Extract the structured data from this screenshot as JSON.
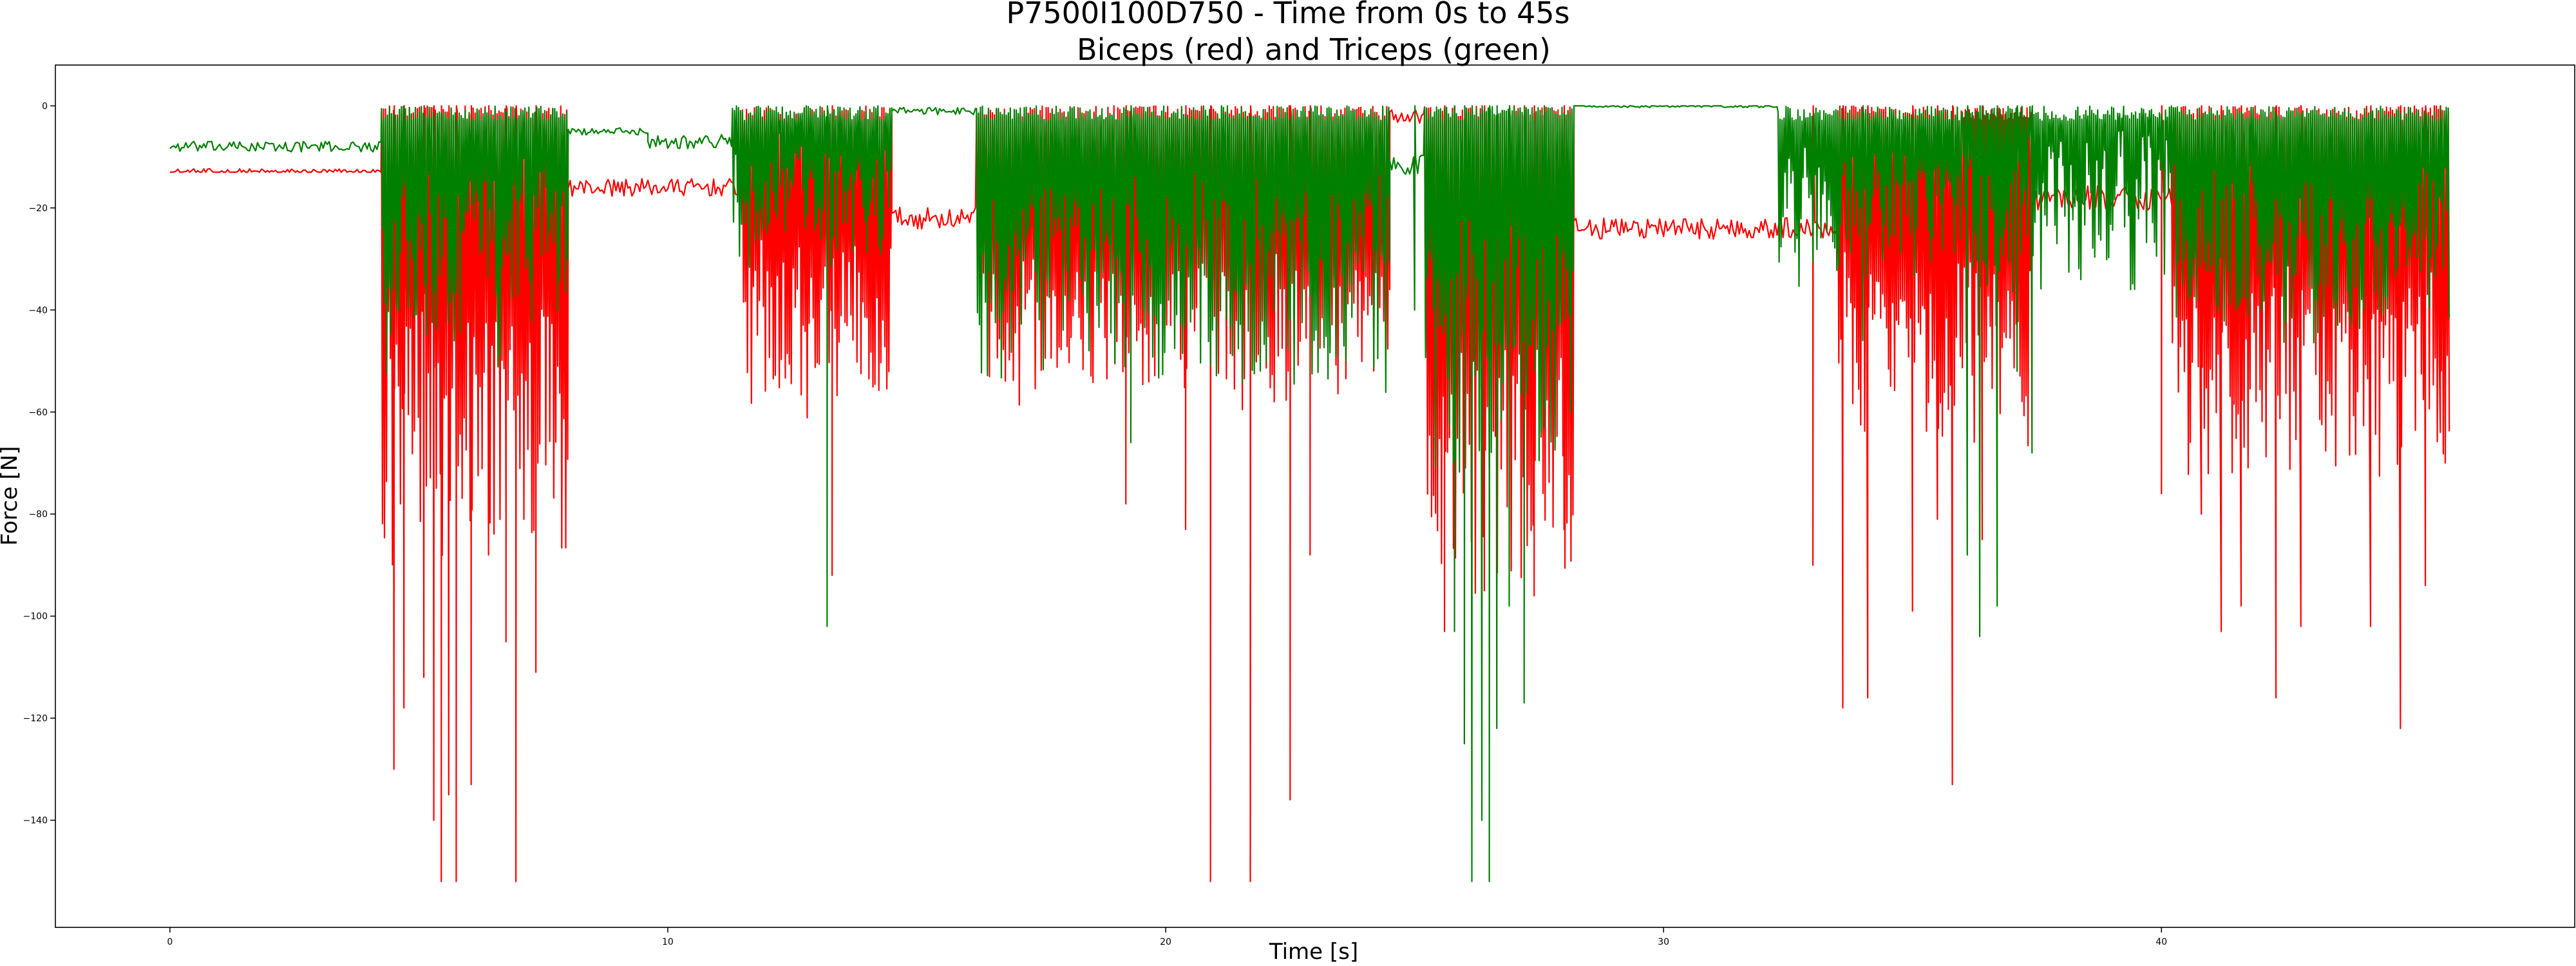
{
  "chart_data": {
    "type": "line",
    "title": "P7500I100D750 - Time from 0s to 45s",
    "subtitle": "Biceps (red) and Triceps (green)",
    "xlabel": "Time [s]",
    "ylabel": "Force [N]",
    "xlim": [
      -2.3,
      48.3
    ],
    "ylim": [
      -161,
      8
    ],
    "xticks": [
      0,
      10,
      20,
      30,
      40
    ],
    "yticks": [
      0,
      -20,
      -40,
      -60,
      -80,
      -100,
      -120,
      -140
    ],
    "grid": false,
    "legend": "none",
    "series": [
      {
        "color": "#ff0000",
        "segments": [
          {
            "start": 0,
            "end": 4.25,
            "kind": "steady",
            "baseline": -13,
            "min": -13,
            "max": -11
          },
          {
            "start": 4.25,
            "end": 8.0,
            "kind": "burst",
            "low": -88,
            "floor": -35
          },
          {
            "start": 8.0,
            "end": 11.5,
            "kind": "steady",
            "baseline": -16,
            "min": -18,
            "max": -13
          },
          {
            "start": 11.5,
            "end": 14.5,
            "kind": "burst",
            "low": -55,
            "floor": -25
          },
          {
            "start": 14.5,
            "end": 16.2,
            "kind": "steady",
            "baseline": -22,
            "min": -25,
            "max": -19
          },
          {
            "start": 16.2,
            "end": 24.5,
            "kind": "burst",
            "low": -52,
            "floor": -28
          },
          {
            "start": 24.5,
            "end": 25.2,
            "kind": "steady",
            "baseline": -2,
            "min": -4,
            "max": 0
          },
          {
            "start": 25.2,
            "end": 28.2,
            "kind": "burst",
            "low": -88,
            "floor": -45
          },
          {
            "start": 28.2,
            "end": 33.5,
            "kind": "steady",
            "baseline": -24,
            "min": -27,
            "max": -21
          },
          {
            "start": 33.5,
            "end": 37.4,
            "kind": "burst",
            "low": -62,
            "floor": -28
          },
          {
            "start": 37.4,
            "end": 40.2,
            "kind": "steady",
            "baseline": -18,
            "min": -22,
            "max": -15
          },
          {
            "start": 40.2,
            "end": 45.8,
            "kind": "burst",
            "low": -68,
            "floor": -30
          }
        ],
        "spikes": [
          [
            4.5,
            -130
          ],
          [
            4.7,
            -118
          ],
          [
            5.1,
            -112
          ],
          [
            5.3,
            -140
          ],
          [
            5.45,
            -152
          ],
          [
            5.6,
            -135
          ],
          [
            5.75,
            -152
          ],
          [
            6.05,
            -133
          ],
          [
            6.4,
            -88
          ],
          [
            6.75,
            -105
          ],
          [
            6.95,
            -152
          ],
          [
            7.35,
            -111
          ],
          [
            13.3,
            -92
          ],
          [
            19.2,
            -78
          ],
          [
            20.4,
            -83
          ],
          [
            20.9,
            -152
          ],
          [
            21.7,
            -152
          ],
          [
            22.5,
            -136
          ],
          [
            22.9,
            -88
          ],
          [
            25.6,
            -103
          ],
          [
            26.4,
            -95
          ],
          [
            27.4,
            -96
          ],
          [
            28.0,
            -83
          ],
          [
            33.0,
            -90
          ],
          [
            33.6,
            -118
          ],
          [
            34.1,
            -116
          ],
          [
            35.0,
            -99
          ],
          [
            35.5,
            -81
          ],
          [
            35.8,
            -133
          ],
          [
            36.4,
            -85
          ],
          [
            40.0,
            -76
          ],
          [
            40.8,
            -80
          ],
          [
            41.2,
            -103
          ],
          [
            41.6,
            -98
          ],
          [
            42.3,
            -116
          ],
          [
            42.8,
            -102
          ],
          [
            44.2,
            -102
          ],
          [
            44.8,
            -122
          ],
          [
            45.3,
            -94
          ],
          [
            45.6,
            -64
          ]
        ]
      },
      {
        "color": "#008000",
        "segments": [
          {
            "start": 0,
            "end": 4.25,
            "kind": "steady",
            "baseline": -8,
            "min": -9,
            "max": -6
          },
          {
            "start": 4.25,
            "end": 8.0,
            "kind": "burst",
            "low": -45,
            "floor": -10
          },
          {
            "start": 8.0,
            "end": 9.6,
            "kind": "steady",
            "baseline": -5,
            "min": -6,
            "max": -4
          },
          {
            "start": 9.6,
            "end": 11.3,
            "kind": "steady",
            "baseline": -7,
            "min": -9,
            "max": -5
          },
          {
            "start": 11.3,
            "end": 14.5,
            "kind": "burst",
            "low": -25,
            "floor": -5
          },
          {
            "start": 14.5,
            "end": 16.2,
            "kind": "steady",
            "baseline": -1,
            "min": -2,
            "max": 0
          },
          {
            "start": 16.2,
            "end": 24.5,
            "kind": "burst",
            "low": -50,
            "floor": -12
          },
          {
            "start": 24.5,
            "end": 25.2,
            "kind": "steady",
            "baseline": -12,
            "min": -15,
            "max": -8
          },
          {
            "start": 25.2,
            "end": 28.2,
            "kind": "burst",
            "low": -65,
            "floor": -20
          },
          {
            "start": 28.2,
            "end": 32.3,
            "kind": "steady",
            "baseline": 0,
            "min": -1,
            "max": 0
          },
          {
            "start": 32.3,
            "end": 36.0,
            "kind": "burst",
            "low": -28,
            "floor": -6
          },
          {
            "start": 36.0,
            "end": 40.2,
            "kind": "burst",
            "low": -30,
            "floor": -4
          },
          {
            "start": 40.2,
            "end": 45.8,
            "kind": "burst",
            "low": -40,
            "floor": -10
          }
        ],
        "spikes": [
          [
            13.2,
            -102
          ],
          [
            19.3,
            -66
          ],
          [
            25.0,
            -40
          ],
          [
            25.8,
            -103
          ],
          [
            26.0,
            -125
          ],
          [
            26.15,
            -152
          ],
          [
            26.35,
            -140
          ],
          [
            26.5,
            -152
          ],
          [
            26.65,
            -122
          ],
          [
            26.9,
            -98
          ],
          [
            27.2,
            -117
          ],
          [
            27.6,
            -63
          ],
          [
            34.0,
            -46
          ],
          [
            36.1,
            -88
          ],
          [
            36.35,
            -104
          ],
          [
            36.7,
            -98
          ],
          [
            37.1,
            -52
          ],
          [
            37.4,
            -68
          ]
        ]
      }
    ]
  }
}
